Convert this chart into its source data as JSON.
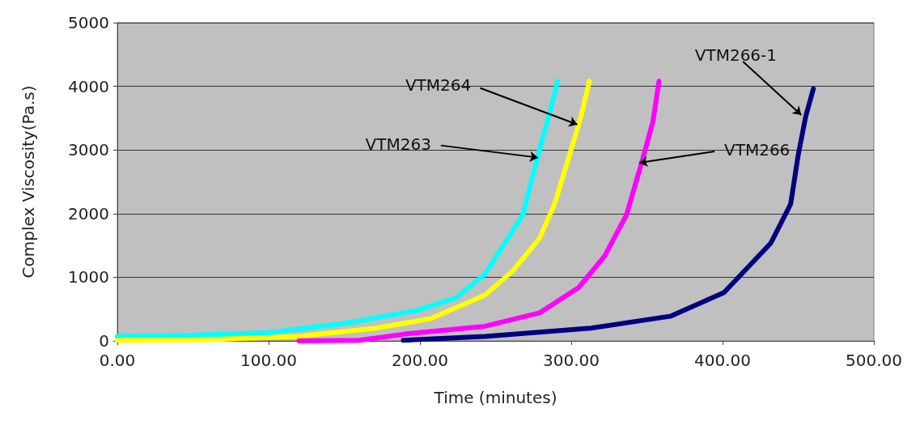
{
  "chart_data": {
    "type": "line",
    "xlabel": "Time (minutes)",
    "ylabel": "Complex Viscosity(Pa.s)",
    "xlim": [
      0,
      500
    ],
    "xticks": [
      {
        "value": 0,
        "label": "0.00"
      },
      {
        "value": 100,
        "label": "100.00"
      },
      {
        "value": 200,
        "label": "200.00"
      },
      {
        "value": 300,
        "label": "300.00"
      },
      {
        "value": 400,
        "label": "400.00"
      },
      {
        "value": 500,
        "label": "500.00"
      }
    ],
    "ylim": [
      0,
      5000
    ],
    "yticks": [
      0,
      1000,
      2000,
      3000,
      4000,
      5000
    ],
    "grid": "y",
    "marker": "none",
    "line_style": "solid",
    "series": [
      {
        "color": "#00ffff",
        "x": [
          0,
          50,
          101,
          154,
          198,
          224,
          243,
          268,
          279,
          286.5,
          291
        ],
        "values": [
          70,
          90,
          130,
          290,
          480,
          680,
          1050,
          1980,
          3010,
          3650,
          4080
        ]
      },
      {
        "color": "#ffff00",
        "x": [
          0,
          60,
          119,
          171,
          207,
          243,
          261,
          279,
          289,
          300,
          306.5,
          312
        ],
        "values": [
          10,
          20,
          70,
          200,
          350,
          720,
          1090,
          1610,
          2150,
          3010,
          3530,
          4080
        ]
      },
      {
        "color": "#ff00ff",
        "x": [
          120,
          160,
          191,
          243,
          279,
          305,
          322,
          336.5,
          347,
          354,
          358
        ],
        "values": [
          0,
          10,
          110,
          230,
          440,
          840,
          1330,
          1980,
          2840,
          3450,
          4080
        ]
      },
      {
        "color": "#000080",
        "x": [
          189,
          243,
          313,
          366,
          401,
          432,
          445,
          450,
          455,
          460
        ],
        "values": [
          10,
          70,
          200,
          390,
          760,
          1540,
          2150,
          2920,
          3530,
          3960
        ]
      }
    ],
    "annotations": [
      {
        "text": "VTM263",
        "x": 278,
        "y": 2880
      },
      {
        "text": "VTM264",
        "x": 304,
        "y": 3400
      },
      {
        "text": "VTM266",
        "x": 345,
        "y": 2800
      },
      {
        "text": "VTM266-1",
        "x": 452,
        "y": 3550
      }
    ]
  }
}
